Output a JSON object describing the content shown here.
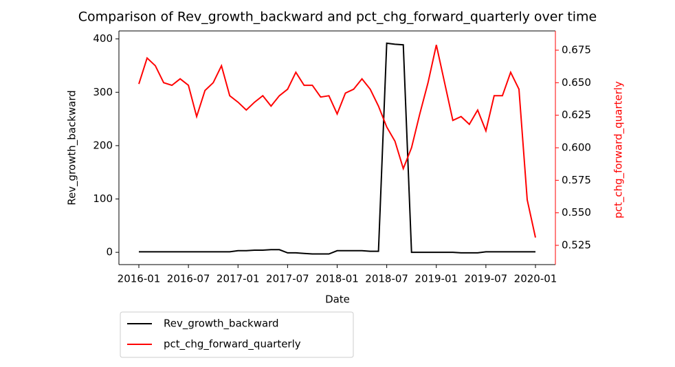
{
  "chart_data": {
    "type": "line",
    "title": "Comparison of Rev_growth_backward and pct_chg_forward_quarterly over time",
    "x_label": "Date",
    "y_label": "Rev_growth_backward",
    "y2_label": "pct_chg_forward_quarterly",
    "x": [
      "2016-01",
      "2016-02",
      "2016-03",
      "2016-04",
      "2016-05",
      "2016-06",
      "2016-07",
      "2016-08",
      "2016-09",
      "2016-10",
      "2016-11",
      "2016-12",
      "2017-01",
      "2017-02",
      "2017-03",
      "2017-04",
      "2017-05",
      "2017-06",
      "2017-07",
      "2017-08",
      "2017-09",
      "2017-10",
      "2017-11",
      "2017-12",
      "2018-01",
      "2018-02",
      "2018-03",
      "2018-04",
      "2018-05",
      "2018-06",
      "2018-07",
      "2018-08",
      "2018-09",
      "2018-10",
      "2018-11",
      "2018-12",
      "2019-01",
      "2019-02",
      "2019-03",
      "2019-04",
      "2019-05",
      "2019-06",
      "2019-07",
      "2019-08",
      "2019-09",
      "2019-10",
      "2019-11",
      "2019-12",
      "2020-01"
    ],
    "xticks": [
      "2016-01",
      "2016-07",
      "2017-01",
      "2017-07",
      "2018-01",
      "2018-07",
      "2019-01",
      "2019-07",
      "2020-01"
    ],
    "series": [
      {
        "name": "Rev_growth_backward",
        "color": "#000000",
        "axis": "y",
        "values": [
          1,
          1,
          1,
          1,
          1,
          1,
          1,
          1,
          1,
          1,
          1,
          1,
          3,
          3,
          4,
          4,
          5,
          5,
          -1,
          -1,
          -2,
          -3,
          -3,
          -3,
          3,
          3,
          3,
          3,
          2,
          2,
          392,
          390,
          389,
          0,
          0,
          0,
          0,
          0,
          0,
          -1,
          -1,
          -1,
          1,
          1,
          1,
          1,
          1,
          1,
          1
        ]
      },
      {
        "name": "pct_chg_forward_quarterly",
        "color": "#ff0000",
        "axis": "y2",
        "values": [
          0.649,
          0.669,
          0.663,
          0.65,
          0.648,
          0.653,
          0.648,
          0.624,
          0.644,
          0.65,
          0.663,
          0.64,
          0.635,
          0.629,
          0.635,
          0.64,
          0.632,
          0.64,
          0.645,
          0.658,
          0.648,
          0.648,
          0.639,
          0.64,
          0.626,
          0.642,
          0.645,
          0.653,
          0.645,
          0.632,
          0.616,
          0.605,
          0.584,
          0.6,
          0.626,
          0.65,
          0.679,
          0.65,
          0.621,
          0.624,
          0.618,
          0.629,
          0.613,
          0.64,
          0.64,
          0.658,
          0.645,
          0.56,
          0.531
        ]
      }
    ],
    "ylim": [
      -23,
      415
    ],
    "yticks": [
      0,
      100,
      200,
      300,
      400
    ],
    "y2lim": [
      0.5102,
      0.6898
    ],
    "y2ticks": [
      0.525,
      {
        "value": 0.55,
        "label": "0.550"
      },
      0.575,
      {
        "value": 0.6,
        "label": "0.600"
      },
      0.625,
      {
        "value": 0.65,
        "label": "0.650"
      },
      0.675
    ],
    "y2_color": "#ff0000",
    "legend": "bottom-left"
  }
}
